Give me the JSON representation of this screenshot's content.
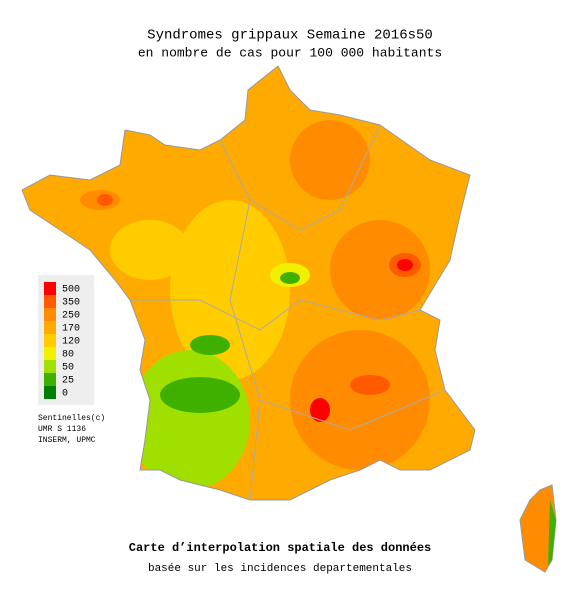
{
  "header": {
    "title": "Syndromes grippaux Semaine 2016s50",
    "subtitle": "en nombre de cas pour 100 000 habitants"
  },
  "legend": [
    {
      "value": 500,
      "color": "#ff0000"
    },
    {
      "value": 350,
      "color": "#ff5a00"
    },
    {
      "value": 250,
      "color": "#ff8c00"
    },
    {
      "value": 170,
      "color": "#ffaa00"
    },
    {
      "value": 120,
      "color": "#ffcc00"
    },
    {
      "value": 80,
      "color": "#f0f000"
    },
    {
      "value": 50,
      "color": "#a0e000"
    },
    {
      "value": 25,
      "color": "#40b000"
    },
    {
      "value": 0,
      "color": "#008000"
    }
  ],
  "credits": [
    "Sentinelles(c)",
    "UMR S 1136",
    "INSERM, UPMC"
  ],
  "footer": {
    "title": "Carte d’interpolation spatiale des données",
    "subtitle": "basée sur les incidences departementales"
  }
}
